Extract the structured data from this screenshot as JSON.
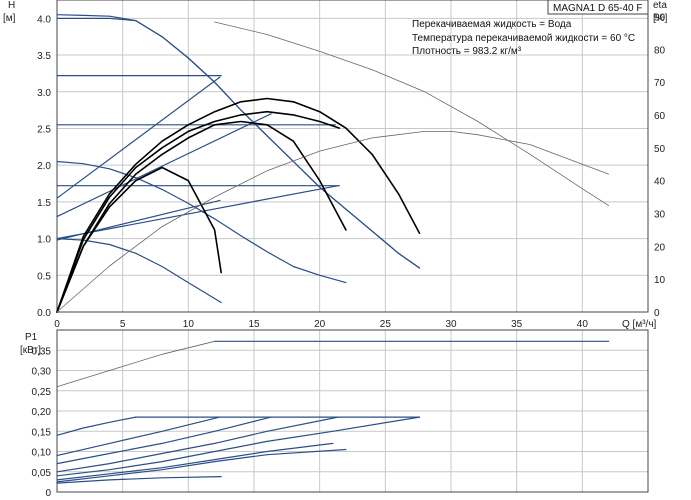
{
  "model": "MAGNA1 D 65-40 F",
  "info_lines": [
    "Перекачиваемая жидкость = Вода",
    "Температура перекачиваемой жидкости = 60 °C",
    "Плотность = 983.2 кг/м³"
  ],
  "colors": {
    "blue": "#2a4f86",
    "black": "#000000",
    "gray": "#666666",
    "grid": "#c8c8c8",
    "frame": "#444444"
  },
  "chart_data": [
    {
      "type": "line",
      "name": "head-eta",
      "x_unit": "Q [м³/ч]",
      "y_left_label_lines": [
        "H",
        "[м]"
      ],
      "y_right_label_lines": [
        "eta",
        "[%]"
      ],
      "xlim": [
        0,
        45
      ],
      "ylim": [
        0,
        4.25
      ],
      "y2lim": [
        0,
        95
      ],
      "x_ticks": [
        "0",
        "5",
        "10",
        "15",
        "20",
        "25",
        "30",
        "35",
        "40"
      ],
      "y_ticks": [
        "0.0",
        "0.5",
        "1.0",
        "1.5",
        "2.0",
        "2.5",
        "3.0",
        "3.5",
        "4.0"
      ],
      "y2_ticks": [
        "0",
        "10",
        "20",
        "30",
        "40",
        "50",
        "60",
        "70",
        "80",
        "90"
      ],
      "grid": true,
      "series": [
        {
          "role": "head-max",
          "color": "blue",
          "x": [
            0,
            2,
            4,
            6,
            8,
            10,
            12,
            14,
            16,
            18,
            20,
            22,
            24,
            26,
            27.6
          ],
          "y": [
            4.05,
            4.04,
            4.03,
            3.97,
            3.75,
            3.46,
            3.13,
            2.75,
            2.4,
            2.05,
            1.7,
            1.4,
            1.1,
            0.8,
            0.6
          ]
        },
        {
          "role": "head-limit",
          "color": "blue",
          "x": [
            0,
            2,
            4,
            6,
            8,
            10,
            12,
            14,
            16,
            18,
            20,
            22,
            24,
            26,
            27.6
          ],
          "y": [
            4.0,
            4.0,
            4.0,
            3.97,
            3.75,
            3.46,
            3.13,
            2.75,
            2.4,
            2.05,
            1.7,
            1.4,
            1.1,
            0.8,
            0.6
          ]
        },
        {
          "role": "head-mid",
          "color": "blue",
          "x": [
            0,
            2,
            4,
            6,
            8,
            10,
            12,
            14,
            16,
            18,
            20,
            22
          ],
          "y": [
            2.05,
            2.02,
            1.95,
            1.83,
            1.67,
            1.48,
            1.27,
            1.04,
            0.82,
            0.62,
            0.5,
            0.4
          ]
        },
        {
          "role": "head-min",
          "color": "blue",
          "x": [
            0,
            2,
            4,
            6,
            8,
            10,
            12.5
          ],
          "y": [
            1.0,
            0.98,
            0.92,
            0.8,
            0.62,
            0.4,
            0.13
          ]
        },
        {
          "role": "prop-3.2",
          "color": "blue",
          "x": [
            0,
            6,
            10,
            12.5
          ],
          "y": [
            3.22,
            3.22,
            3.22,
            3.22
          ]
        },
        {
          "role": "prop-2.55",
          "color": "blue",
          "x": [
            0,
            6,
            12,
            16,
            21.2
          ],
          "y": [
            2.55,
            2.55,
            2.55,
            2.55,
            2.55
          ]
        },
        {
          "role": "prop-1.72",
          "color": "blue",
          "x": [
            0,
            10,
            20,
            21.5
          ],
          "y": [
            1.72,
            1.72,
            1.72,
            1.72
          ]
        },
        {
          "role": "diag-1",
          "color": "blue",
          "x": [
            0,
            12.4
          ],
          "y": [
            1.55,
            3.2
          ]
        },
        {
          "role": "diag-2",
          "color": "blue",
          "x": [
            0,
            16.3
          ],
          "y": [
            1.3,
            2.7
          ]
        },
        {
          "role": "diag-3",
          "color": "blue",
          "x": [
            0,
            21.4
          ],
          "y": [
            1.0,
            1.72
          ]
        },
        {
          "role": "diag-4",
          "color": "blue",
          "x": [
            0,
            12.4
          ],
          "y": [
            0.98,
            1.52
          ]
        },
        {
          "role": "eta-black-1",
          "color": "black",
          "x": [
            0,
            2,
            4,
            6,
            8,
            10,
            12,
            14,
            16,
            18,
            20,
            22,
            24,
            26,
            27.6
          ],
          "y2": [
            0,
            23,
            36,
            45,
            52,
            57,
            61,
            64,
            65,
            64,
            61,
            56,
            48,
            36,
            24
          ]
        },
        {
          "role": "eta-black-2",
          "color": "black",
          "x": [
            0,
            2,
            4,
            6,
            8,
            10,
            12,
            14,
            16,
            18,
            20,
            21.5
          ],
          "y2": [
            0,
            22,
            35,
            44,
            50,
            55,
            58,
            60,
            61,
            60,
            58,
            56
          ]
        },
        {
          "role": "eta-black-3",
          "color": "black",
          "x": [
            0,
            2,
            4,
            6,
            8,
            10,
            12,
            14,
            16,
            18,
            20,
            22
          ],
          "y2": [
            0,
            20,
            33,
            42,
            48,
            53,
            57,
            58,
            57,
            52,
            40,
            25
          ]
        },
        {
          "role": "eta-black-4",
          "color": "black",
          "x": [
            0,
            2,
            4,
            6,
            8,
            10,
            12,
            12.5
          ],
          "y2": [
            0,
            20,
            32,
            40,
            44,
            40,
            25,
            12
          ]
        },
        {
          "role": "eta-gray-1",
          "color": "gray",
          "x": [
            0,
            4,
            8,
            12,
            16,
            20,
            24,
            28,
            30,
            32,
            36,
            40,
            42
          ],
          "y2": [
            0,
            14,
            26,
            35,
            43,
            49,
            53,
            55,
            55,
            54,
            51,
            45,
            42
          ]
        },
        {
          "role": "head-gray",
          "color": "gray",
          "x": [
            12,
            16,
            20,
            24,
            28,
            32,
            36,
            40,
            42
          ],
          "y": [
            3.95,
            3.78,
            3.55,
            3.3,
            3.0,
            2.6,
            2.15,
            1.68,
            1.45
          ]
        }
      ]
    },
    {
      "type": "line",
      "name": "power",
      "y_label_lines": [
        "P1",
        "[кВт]"
      ],
      "xlim": [
        0,
        45
      ],
      "ylim": [
        0,
        0.4
      ],
      "y_ticks": [
        "0",
        "0,05",
        "0,10",
        "0,15",
        "0,20",
        "0,25",
        "0,30",
        "0,35"
      ],
      "grid": true,
      "series": [
        {
          "role": "p-max",
          "color": "blue",
          "x": [
            12,
            20,
            30,
            40,
            42
          ],
          "y": [
            0.372,
            0.372,
            0.372,
            0.372,
            0.372
          ]
        },
        {
          "role": "p-max-gray",
          "color": "gray",
          "x": [
            0,
            4,
            8,
            12
          ],
          "y": [
            0.26,
            0.3,
            0.34,
            0.372
          ]
        },
        {
          "role": "p-flat",
          "color": "blue",
          "x": [
            6,
            12,
            16,
            21,
            27.6
          ],
          "y": [
            0.185,
            0.185,
            0.185,
            0.185,
            0.185
          ]
        },
        {
          "role": "p-1",
          "color": "blue",
          "x": [
            0,
            2,
            4,
            6
          ],
          "y": [
            0.14,
            0.158,
            0.172,
            0.185
          ]
        },
        {
          "role": "p-2",
          "color": "blue",
          "x": [
            0,
            4,
            8,
            12.4
          ],
          "y": [
            0.09,
            0.12,
            0.15,
            0.185
          ]
        },
        {
          "role": "p-3",
          "color": "blue",
          "x": [
            0,
            4,
            8,
            12,
            16.3
          ],
          "y": [
            0.07,
            0.095,
            0.12,
            0.15,
            0.185
          ]
        },
        {
          "role": "p-4",
          "color": "blue",
          "x": [
            0,
            4,
            8,
            12,
            16,
            21.4
          ],
          "y": [
            0.05,
            0.07,
            0.095,
            0.12,
            0.15,
            0.185
          ]
        },
        {
          "role": "p-5",
          "color": "blue",
          "x": [
            0,
            4,
            8,
            12,
            16,
            21,
            27.6
          ],
          "y": [
            0.04,
            0.055,
            0.075,
            0.1,
            0.125,
            0.15,
            0.185
          ]
        },
        {
          "role": "p-6",
          "color": "blue",
          "x": [
            0,
            4,
            8,
            12,
            16,
            21
          ],
          "y": [
            0.03,
            0.045,
            0.06,
            0.08,
            0.1,
            0.12
          ]
        },
        {
          "role": "p-7",
          "color": "blue",
          "x": [
            0,
            4,
            8,
            12,
            16,
            22
          ],
          "y": [
            0.025,
            0.04,
            0.055,
            0.075,
            0.092,
            0.105
          ]
        },
        {
          "role": "p-min",
          "color": "blue",
          "x": [
            0,
            4,
            8,
            12.5
          ],
          "y": [
            0.022,
            0.03,
            0.035,
            0.038
          ]
        }
      ]
    }
  ]
}
